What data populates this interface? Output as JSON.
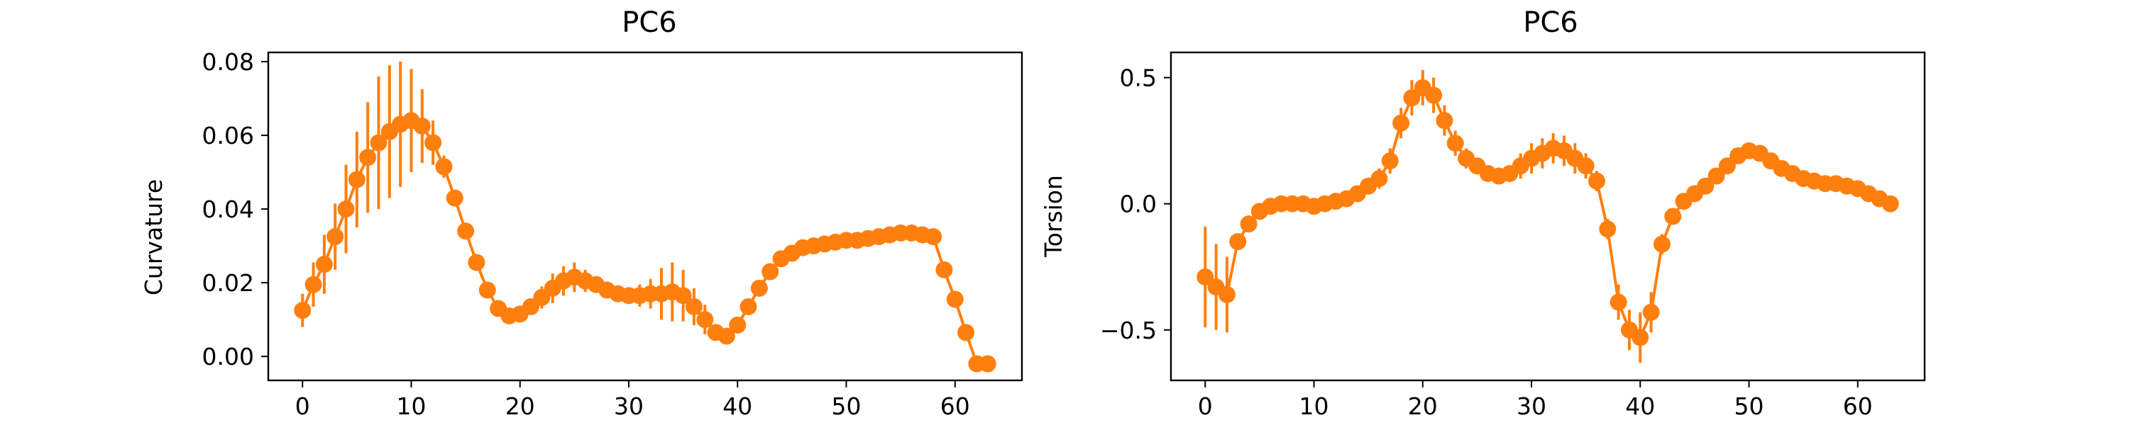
{
  "chart_data": [
    {
      "type": "line",
      "title": "PC6",
      "xlabel": "",
      "ylabel": "Curvature",
      "xlim": [
        -3.15,
        66.15
      ],
      "ylim": [
        -0.0065,
        0.0825
      ],
      "xticks": [
        0,
        10,
        20,
        30,
        40,
        50,
        60
      ],
      "yticks": [
        0.0,
        0.02,
        0.04,
        0.06,
        0.08
      ],
      "ytick_decimals": 2,
      "color": "#ff7f0e",
      "series": [
        {
          "x": [
            0,
            1,
            2,
            3,
            4,
            5,
            6,
            7,
            8,
            9,
            10,
            11,
            12,
            13,
            14,
            15,
            16,
            17,
            18,
            19,
            20,
            21,
            22,
            23,
            24,
            25,
            26,
            27,
            28,
            29,
            30,
            31,
            32,
            33,
            34,
            35,
            36,
            37,
            38,
            39,
            40,
            41,
            42,
            43,
            44,
            45,
            46,
            47,
            48,
            49,
            50,
            51,
            52,
            53,
            54,
            55,
            56,
            57,
            58,
            59,
            60,
            61,
            62,
            63
          ],
          "y": [
            0.0125,
            0.0195,
            0.025,
            0.0325,
            0.04,
            0.048,
            0.054,
            0.058,
            0.061,
            0.063,
            0.064,
            0.0625,
            0.058,
            0.0515,
            0.043,
            0.034,
            0.0255,
            0.018,
            0.013,
            0.011,
            0.0115,
            0.0135,
            0.016,
            0.0185,
            0.0205,
            0.0215,
            0.0205,
            0.0195,
            0.018,
            0.017,
            0.0165,
            0.0165,
            0.017,
            0.017,
            0.0175,
            0.0165,
            0.0135,
            0.01,
            0.0065,
            0.0055,
            0.0085,
            0.0135,
            0.0185,
            0.023,
            0.0265,
            0.028,
            0.0295,
            0.03,
            0.0305,
            0.031,
            0.0315,
            0.0315,
            0.032,
            0.0325,
            0.033,
            0.0335,
            0.0335,
            0.033,
            0.0325,
            0.0235,
            0.0155,
            0.0065,
            -0.002,
            -0.002
          ],
          "err": [
            0.0045,
            0.006,
            0.008,
            0.009,
            0.012,
            0.013,
            0.015,
            0.018,
            0.018,
            0.017,
            0.014,
            0.01,
            0.006,
            0.003,
            0.002,
            0.002,
            0.002,
            0.002,
            0.002,
            0.002,
            0.002,
            0.002,
            0.003,
            0.004,
            0.004,
            0.004,
            0.003,
            0.002,
            0.002,
            0.002,
            0.002,
            0.003,
            0.004,
            0.007,
            0.008,
            0.007,
            0.005,
            0.004,
            0.002,
            0.001,
            0.001,
            0.001,
            0.001,
            0.001,
            0.002,
            0.002,
            0.001,
            0.001,
            0.001,
            0.001,
            0.001,
            0.001,
            0.001,
            0.001,
            0.001,
            0.001,
            0.001,
            0.001,
            0.001,
            0.001,
            0.001,
            0.001,
            0.001,
            0.001
          ]
        }
      ]
    },
    {
      "type": "line",
      "title": "PC6",
      "xlabel": "",
      "ylabel": "Torsion",
      "xlim": [
        -3.15,
        66.15
      ],
      "ylim": [
        -0.7,
        0.6
      ],
      "xticks": [
        0,
        10,
        20,
        30,
        40,
        50,
        60
      ],
      "yticks": [
        -0.5,
        0.0,
        0.5
      ],
      "ytick_decimals": 1,
      "color": "#ff7f0e",
      "series": [
        {
          "x": [
            0,
            1,
            2,
            3,
            4,
            5,
            6,
            7,
            8,
            9,
            10,
            11,
            12,
            13,
            14,
            15,
            16,
            17,
            18,
            19,
            20,
            21,
            22,
            23,
            24,
            25,
            26,
            27,
            28,
            29,
            30,
            31,
            32,
            33,
            34,
            35,
            36,
            37,
            38,
            39,
            40,
            41,
            42,
            43,
            44,
            45,
            46,
            47,
            48,
            49,
            50,
            51,
            52,
            53,
            54,
            55,
            56,
            57,
            58,
            59,
            60,
            61,
            62,
            63
          ],
          "y": [
            -0.29,
            -0.33,
            -0.36,
            -0.15,
            -0.08,
            -0.03,
            -0.01,
            0.0,
            0.0,
            0.0,
            -0.01,
            0.0,
            0.01,
            0.02,
            0.04,
            0.07,
            0.1,
            0.17,
            0.32,
            0.42,
            0.46,
            0.43,
            0.33,
            0.24,
            0.18,
            0.15,
            0.12,
            0.11,
            0.12,
            0.15,
            0.18,
            0.2,
            0.22,
            0.21,
            0.18,
            0.15,
            0.09,
            -0.1,
            -0.39,
            -0.5,
            -0.53,
            -0.43,
            -0.16,
            -0.05,
            0.01,
            0.04,
            0.07,
            0.11,
            0.15,
            0.19,
            0.21,
            0.2,
            0.17,
            0.14,
            0.12,
            0.1,
            0.09,
            0.08,
            0.08,
            0.07,
            0.06,
            0.04,
            0.02,
            0.0
          ],
          "err": [
            0.2,
            0.17,
            0.15,
            0.03,
            0.02,
            0.02,
            0.02,
            0.02,
            0.02,
            0.02,
            0.02,
            0.02,
            0.02,
            0.02,
            0.02,
            0.03,
            0.04,
            0.05,
            0.06,
            0.07,
            0.07,
            0.07,
            0.06,
            0.05,
            0.04,
            0.03,
            0.02,
            0.02,
            0.03,
            0.05,
            0.06,
            0.06,
            0.06,
            0.06,
            0.06,
            0.05,
            0.04,
            0.04,
            0.07,
            0.08,
            0.1,
            0.08,
            0.04,
            0.03,
            0.02,
            0.02,
            0.02,
            0.02,
            0.02,
            0.02,
            0.02,
            0.02,
            0.02,
            0.02,
            0.02,
            0.02,
            0.02,
            0.02,
            0.02,
            0.02,
            0.02,
            0.02,
            0.02,
            0.02
          ]
        }
      ]
    }
  ]
}
